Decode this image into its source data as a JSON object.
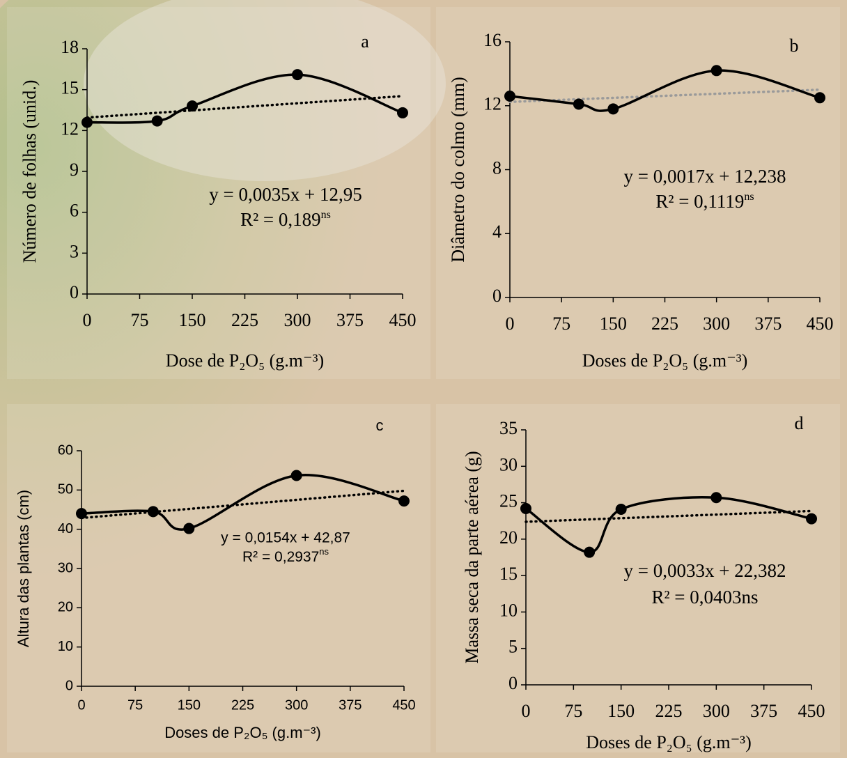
{
  "chart_data": [
    {
      "type": "line",
      "panel_label": "a",
      "xlabel": "Dose de P₂O₅ (g.m⁻³)",
      "ylabel": "Número de folhas (unid.)",
      "x": [
        0,
        100,
        150,
        300,
        450
      ],
      "values": [
        12.6,
        12.7,
        13.8,
        16.1,
        13.3
      ],
      "color": "#000000",
      "smooth": true,
      "xlim": [
        0,
        450
      ],
      "xticks": [
        0,
        75,
        150,
        225,
        300,
        375,
        450
      ],
      "ylim": [
        0,
        18
      ],
      "yticks": [
        0,
        3,
        6,
        9,
        12,
        15,
        18
      ],
      "trendline": {
        "slope": 0.0035,
        "intercept": 12.95,
        "color": "#000000"
      },
      "equation": "y = 0,0035x + 12,95",
      "r2": "R² = 0,189",
      "r2_note": "ns"
    },
    {
      "type": "line",
      "panel_label": "b",
      "xlabel": "Doses de P₂O₅ (g.m⁻³)",
      "ylabel": "Diâmetro do colmo (mm)",
      "x": [
        0,
        100,
        150,
        300,
        450
      ],
      "values": [
        12.6,
        12.1,
        11.8,
        14.2,
        12.5
      ],
      "color": "#000000",
      "smooth": true,
      "xlim": [
        0,
        450
      ],
      "xticks": [
        0,
        75,
        150,
        225,
        300,
        375,
        450
      ],
      "ylim": [
        0,
        16
      ],
      "yticks": [
        0,
        4,
        8,
        12,
        16
      ],
      "trendline": {
        "slope": 0.0017,
        "intercept": 12.238,
        "color": "#9a9a9a"
      },
      "equation": "y = 0,0017x + 12,238",
      "r2": "R² = 0,1119",
      "r2_note": "ns"
    },
    {
      "type": "line",
      "panel_label": "c",
      "xlabel": "Doses de P₂O₅ (g.m⁻³)",
      "ylabel": "Altura das plantas (cm)",
      "x": [
        0,
        100,
        150,
        300,
        450
      ],
      "values": [
        44,
        44.5,
        40.2,
        53.7,
        47.2
      ],
      "color": "#000000",
      "smooth": true,
      "xlim": [
        0,
        450
      ],
      "xticks": [
        0,
        75,
        150,
        225,
        300,
        375,
        450
      ],
      "ylim": [
        0,
        60
      ],
      "yticks": [
        0,
        10,
        20,
        30,
        40,
        50,
        60
      ],
      "trendline": {
        "slope": 0.0154,
        "intercept": 42.87,
        "color": "#000000"
      },
      "equation": "y = 0,0154x + 42,87",
      "r2": "R² = 0,2937",
      "r2_note": "ns"
    },
    {
      "type": "line",
      "panel_label": "d",
      "xlabel": "Doses de P₂O₅ (g.m⁻³)",
      "ylabel": "Massa seca da parte aérea (g)",
      "x": [
        0,
        100,
        150,
        300,
        450
      ],
      "values": [
        24.2,
        18.2,
        24.1,
        25.7,
        22.8
      ],
      "color": "#000000",
      "smooth": true,
      "xlim": [
        0,
        450
      ],
      "xticks": [
        0,
        75,
        150,
        225,
        300,
        375,
        450
      ],
      "ylim": [
        0,
        35
      ],
      "yticks": [
        0,
        5,
        10,
        15,
        20,
        25,
        30,
        35
      ],
      "trendline": {
        "slope": 0.0033,
        "intercept": 22.382,
        "color": "#000000"
      },
      "equation": "y = 0,0033x + 22,382",
      "r2": "R² = 0,0403ns"
    }
  ]
}
